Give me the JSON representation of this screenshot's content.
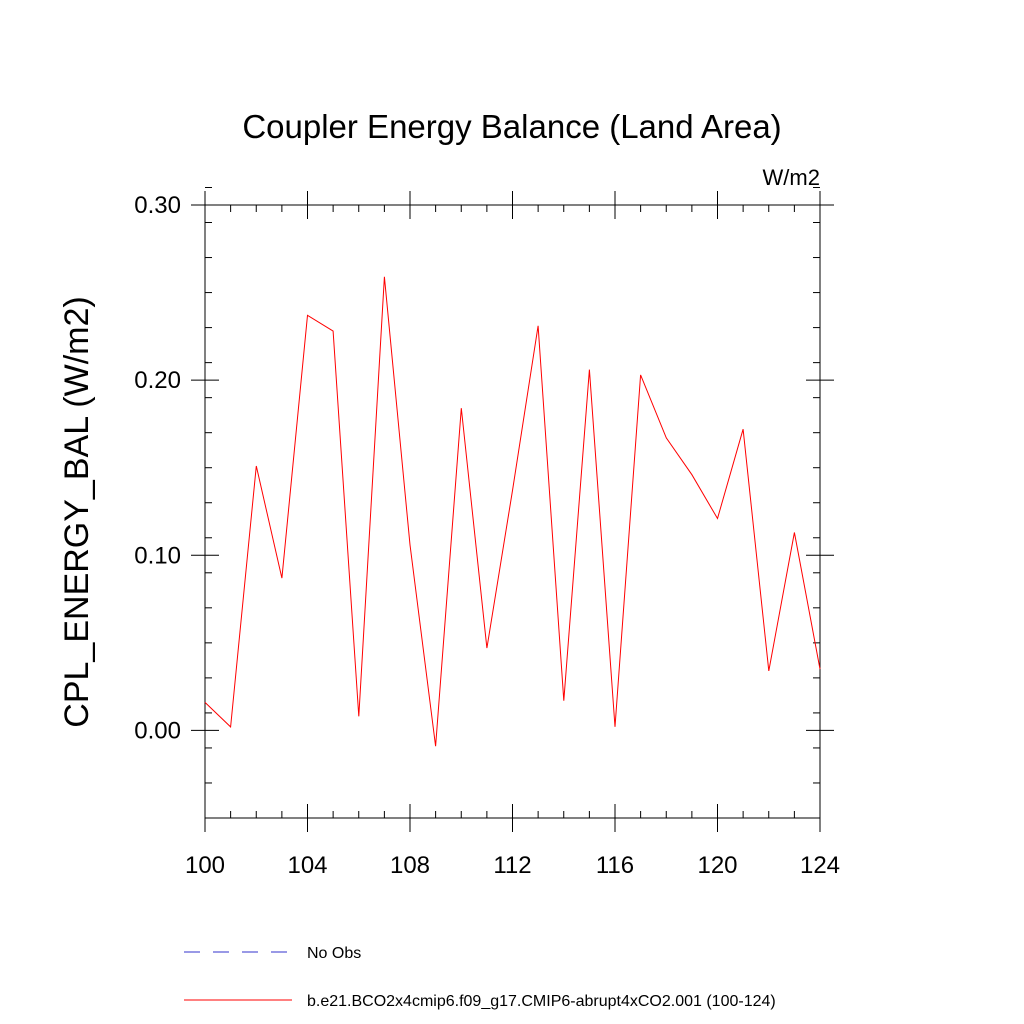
{
  "chart_data": {
    "type": "line",
    "title": "Coupler Energy Balance (Land Area)",
    "units": "W/m2",
    "xlabel": "",
    "ylabel": "CPL_ENERGY_BAL  (W/m2)",
    "xlim": [
      100,
      124
    ],
    "ylim": [
      -0.05,
      0.3
    ],
    "x_ticks": [
      100,
      104,
      108,
      112,
      116,
      120,
      124
    ],
    "x_tick_labels": [
      "100",
      "104",
      "108",
      "112",
      "116",
      "120",
      "124"
    ],
    "y_ticks": [
      0.0,
      0.1,
      0.2,
      0.3
    ],
    "y_tick_labels": [
      "0.00",
      "0.10",
      "0.20",
      "0.30"
    ],
    "y_minor_step": 0.02,
    "x_minor_step": 1,
    "grid": false,
    "legend_position": "bottom",
    "series": [
      {
        "name": "b.e21.BCO2x4cmip6.f09_g17.CMIP6-abrupt4xCO2.001 (100-124)",
        "color": "#ff0000",
        "style": "solid",
        "x": [
          100,
          101,
          102,
          103,
          104,
          105,
          106,
          107,
          108,
          109,
          110,
          111,
          112,
          113,
          114,
          115,
          116,
          117,
          118,
          119,
          120,
          121,
          122,
          123,
          124
        ],
        "values": [
          0.016,
          0.002,
          0.151,
          0.087,
          0.237,
          0.228,
          0.008,
          0.259,
          0.106,
          -0.009,
          0.184,
          0.047,
          0.137,
          0.231,
          0.017,
          0.206,
          0.002,
          0.203,
          0.167,
          0.146,
          0.121,
          0.172,
          0.034,
          0.113,
          0.035
        ]
      }
    ],
    "legend": [
      {
        "label": "No Obs",
        "color": "#3333cc",
        "style": "dashed"
      },
      {
        "label": "b.e21.BCO2x4cmip6.f09_g17.CMIP6-abrupt4xCO2.001 (100-124)",
        "color": "#ff0000",
        "style": "solid"
      }
    ]
  }
}
